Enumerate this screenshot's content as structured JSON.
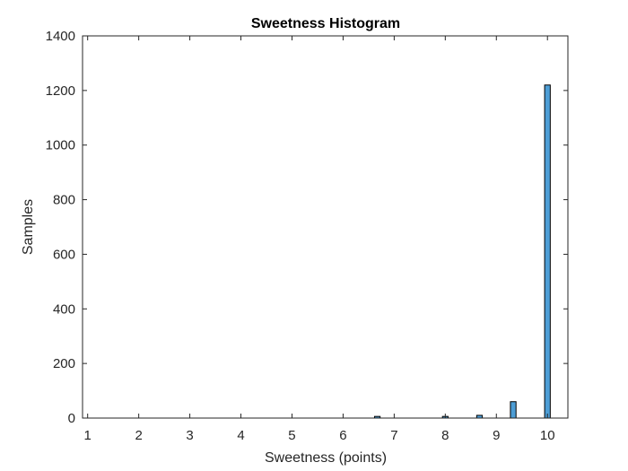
{
  "chart_data": {
    "type": "bar",
    "title": "Sweetness Histogram",
    "xlabel": "Sweetness (points)",
    "ylabel": "Samples",
    "xlim": [
      0.9,
      10.4
    ],
    "ylim": [
      0,
      1400
    ],
    "xticks": [
      1,
      2,
      3,
      4,
      5,
      6,
      7,
      8,
      9,
      10
    ],
    "yticks": [
      0,
      200,
      400,
      600,
      800,
      1000,
      1200,
      1400
    ],
    "grid": false,
    "bar_color": "#4d9ed6",
    "bar_edge_color": "#000000",
    "bin_width": 0.11,
    "bins": [
      {
        "x": 6.67,
        "value": 6
      },
      {
        "x": 8.0,
        "value": 6
      },
      {
        "x": 8.67,
        "value": 10
      },
      {
        "x": 9.33,
        "value": 60
      },
      {
        "x": 10.0,
        "value": 1220
      }
    ]
  }
}
